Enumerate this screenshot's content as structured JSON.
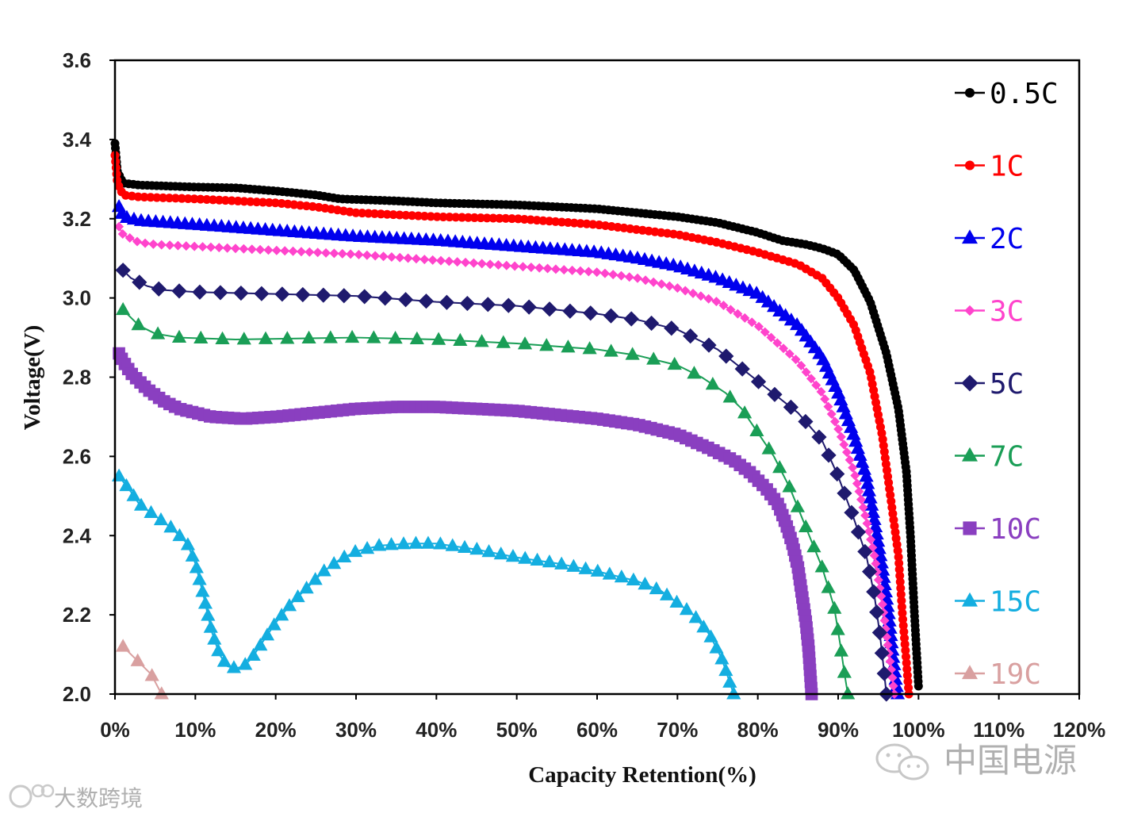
{
  "chart_data": {
    "type": "line",
    "title": "",
    "xlabel": "Capacity Retention(%)",
    "ylabel": "Voltage(V)",
    "xlim": [
      0,
      120
    ],
    "ylim": [
      2.0,
      3.6
    ],
    "x_ticks": [
      0,
      10,
      20,
      30,
      40,
      50,
      60,
      70,
      80,
      90,
      100,
      110,
      120
    ],
    "x_tick_labels": [
      "0%",
      "10%",
      "20%",
      "30%",
      "40%",
      "50%",
      "60%",
      "70%",
      "80%",
      "90%",
      "100%",
      "110%",
      "120%"
    ],
    "y_ticks": [
      2.0,
      2.2,
      2.4,
      2.6,
      2.8,
      3.0,
      3.2,
      3.4,
      3.6
    ],
    "y_tick_labels": [
      "2.0",
      "2.2",
      "2.4",
      "2.6",
      "2.8",
      "3.0",
      "3.2",
      "3.4",
      "3.6"
    ],
    "grid": false,
    "legend_position": "right",
    "series": [
      {
        "name": "0.5C",
        "color": "#000000",
        "marker": "circle",
        "n_markers": 260,
        "points": [
          [
            0,
            3.39
          ],
          [
            0.3,
            3.32
          ],
          [
            1,
            3.29
          ],
          [
            3,
            3.285
          ],
          [
            10,
            3.28
          ],
          [
            15,
            3.278
          ],
          [
            20,
            3.27
          ],
          [
            25,
            3.26
          ],
          [
            28,
            3.25
          ],
          [
            35,
            3.245
          ],
          [
            40,
            3.24
          ],
          [
            50,
            3.235
          ],
          [
            60,
            3.225
          ],
          [
            65,
            3.215
          ],
          [
            70,
            3.205
          ],
          [
            75,
            3.19
          ],
          [
            80,
            3.165
          ],
          [
            83,
            3.145
          ],
          [
            86,
            3.135
          ],
          [
            88,
            3.125
          ],
          [
            90,
            3.11
          ],
          [
            92,
            3.07
          ],
          [
            94,
            2.99
          ],
          [
            96,
            2.86
          ],
          [
            97.5,
            2.72
          ],
          [
            98.5,
            2.56
          ],
          [
            99,
            2.4
          ],
          [
            99.5,
            2.2
          ],
          [
            100,
            2.02
          ]
        ]
      },
      {
        "name": "1C",
        "color": "#ff0000",
        "marker": "circle",
        "n_markers": 190,
        "points": [
          [
            0,
            3.36
          ],
          [
            0.3,
            3.29
          ],
          [
            1,
            3.26
          ],
          [
            3,
            3.255
          ],
          [
            10,
            3.25
          ],
          [
            20,
            3.24
          ],
          [
            25,
            3.23
          ],
          [
            30,
            3.215
          ],
          [
            40,
            3.205
          ],
          [
            50,
            3.2
          ],
          [
            60,
            3.185
          ],
          [
            70,
            3.16
          ],
          [
            75,
            3.14
          ],
          [
            80,
            3.115
          ],
          [
            85,
            3.085
          ],
          [
            88,
            3.05
          ],
          [
            90,
            3.0
          ],
          [
            92,
            2.93
          ],
          [
            94,
            2.81
          ],
          [
            95.5,
            2.65
          ],
          [
            96.5,
            2.5
          ],
          [
            97.5,
            2.35
          ],
          [
            98,
            2.2
          ],
          [
            98.5,
            2.08
          ],
          [
            98.8,
            2.0
          ]
        ]
      },
      {
        "name": "2C",
        "color": "#0000ee",
        "marker": "triangle",
        "n_markers": 150,
        "points": [
          [
            0.5,
            3.23
          ],
          [
            1,
            3.205
          ],
          [
            3,
            3.195
          ],
          [
            10,
            3.185
          ],
          [
            20,
            3.17
          ],
          [
            30,
            3.155
          ],
          [
            40,
            3.145
          ],
          [
            50,
            3.13
          ],
          [
            60,
            3.115
          ],
          [
            65,
            3.1
          ],
          [
            70,
            3.08
          ],
          [
            75,
            3.05
          ],
          [
            80,
            3.01
          ],
          [
            85,
            2.93
          ],
          [
            88,
            2.85
          ],
          [
            90,
            2.76
          ],
          [
            92,
            2.65
          ],
          [
            93.5,
            2.55
          ],
          [
            94.5,
            2.44
          ],
          [
            95.5,
            2.32
          ],
          [
            96.3,
            2.2
          ],
          [
            96.8,
            2.1
          ],
          [
            97.2,
            2.03
          ],
          [
            97.4,
            2.0
          ]
        ]
      },
      {
        "name": "3C",
        "color": "#ff44cc",
        "marker": "diamond-small",
        "n_markers": 130,
        "points": [
          [
            0.5,
            3.18
          ],
          [
            1,
            3.16
          ],
          [
            3,
            3.14
          ],
          [
            5,
            3.135
          ],
          [
            10,
            3.13
          ],
          [
            20,
            3.12
          ],
          [
            30,
            3.11
          ],
          [
            40,
            3.095
          ],
          [
            50,
            3.08
          ],
          [
            60,
            3.065
          ],
          [
            65,
            3.05
          ],
          [
            70,
            3.025
          ],
          [
            75,
            2.99
          ],
          [
            80,
            2.93
          ],
          [
            85,
            2.84
          ],
          [
            88,
            2.76
          ],
          [
            90,
            2.67
          ],
          [
            92,
            2.56
          ],
          [
            93.5,
            2.44
          ],
          [
            94.5,
            2.35
          ],
          [
            95.5,
            2.23
          ],
          [
            96.2,
            2.12
          ],
          [
            96.7,
            2.05
          ],
          [
            97,
            2.0
          ]
        ]
      },
      {
        "name": "5C",
        "color": "#1f1a6e",
        "marker": "diamond",
        "n_markers": 50,
        "points": [
          [
            1,
            3.07
          ],
          [
            2,
            3.05
          ],
          [
            4,
            3.03
          ],
          [
            6,
            3.02
          ],
          [
            10,
            3.015
          ],
          [
            20,
            3.01
          ],
          [
            30,
            3.005
          ],
          [
            40,
            2.99
          ],
          [
            50,
            2.98
          ],
          [
            60,
            2.96
          ],
          [
            65,
            2.945
          ],
          [
            70,
            2.92
          ],
          [
            75,
            2.87
          ],
          [
            80,
            2.79
          ],
          [
            85,
            2.71
          ],
          [
            88,
            2.64
          ],
          [
            90,
            2.55
          ],
          [
            92,
            2.44
          ],
          [
            93.5,
            2.35
          ],
          [
            94.5,
            2.25
          ],
          [
            95.2,
            2.15
          ],
          [
            95.7,
            2.06
          ],
          [
            96,
            2.0
          ]
        ]
      },
      {
        "name": "7C",
        "color": "#1a9e56",
        "marker": "triangle",
        "n_markers": 45,
        "points": [
          [
            1,
            2.97
          ],
          [
            2,
            2.95
          ],
          [
            3,
            2.93
          ],
          [
            5,
            2.91
          ],
          [
            8,
            2.9
          ],
          [
            15,
            2.895
          ],
          [
            30,
            2.9
          ],
          [
            40,
            2.895
          ],
          [
            50,
            2.885
          ],
          [
            60,
            2.87
          ],
          [
            65,
            2.855
          ],
          [
            70,
            2.83
          ],
          [
            73,
            2.8
          ],
          [
            76,
            2.76
          ],
          [
            78,
            2.72
          ],
          [
            80,
            2.66
          ],
          [
            82,
            2.6
          ],
          [
            84,
            2.52
          ],
          [
            86,
            2.42
          ],
          [
            88,
            2.32
          ],
          [
            89.5,
            2.22
          ],
          [
            90.3,
            2.12
          ],
          [
            90.8,
            2.05
          ],
          [
            91.2,
            2.0
          ]
        ]
      },
      {
        "name": "10C",
        "color": "#8a3fc0",
        "marker": "square",
        "n_markers": 150,
        "points": [
          [
            0.5,
            2.86
          ],
          [
            1,
            2.84
          ],
          [
            2,
            2.81
          ],
          [
            4,
            2.77
          ],
          [
            6,
            2.74
          ],
          [
            8,
            2.72
          ],
          [
            12,
            2.7
          ],
          [
            16,
            2.695
          ],
          [
            20,
            2.7
          ],
          [
            25,
            2.71
          ],
          [
            30,
            2.72
          ],
          [
            35,
            2.725
          ],
          [
            40,
            2.725
          ],
          [
            50,
            2.715
          ],
          [
            55,
            2.705
          ],
          [
            60,
            2.695
          ],
          [
            65,
            2.68
          ],
          [
            70,
            2.655
          ],
          [
            74,
            2.62
          ],
          [
            77,
            2.59
          ],
          [
            79,
            2.56
          ],
          [
            81,
            2.52
          ],
          [
            82.5,
            2.48
          ],
          [
            83.5,
            2.43
          ],
          [
            84.3,
            2.38
          ],
          [
            85,
            2.32
          ],
          [
            85.5,
            2.25
          ],
          [
            86,
            2.18
          ],
          [
            86.3,
            2.12
          ],
          [
            86.7,
            2.0
          ]
        ]
      },
      {
        "name": "15C",
        "color": "#14aee0",
        "marker": "triangle",
        "n_markers": 70,
        "points": [
          [
            0.5,
            2.55
          ],
          [
            2,
            2.51
          ],
          [
            3,
            2.48
          ],
          [
            5,
            2.45
          ],
          [
            7,
            2.42
          ],
          [
            9,
            2.38
          ],
          [
            10,
            2.33
          ],
          [
            11,
            2.25
          ],
          [
            12,
            2.16
          ],
          [
            13,
            2.1
          ],
          [
            14,
            2.07
          ],
          [
            15,
            2.065
          ],
          [
            16,
            2.07
          ],
          [
            17,
            2.09
          ],
          [
            18,
            2.12
          ],
          [
            20,
            2.18
          ],
          [
            22,
            2.23
          ],
          [
            24,
            2.27
          ],
          [
            26,
            2.31
          ],
          [
            28,
            2.34
          ],
          [
            30,
            2.36
          ],
          [
            33,
            2.375
          ],
          [
            37,
            2.38
          ],
          [
            40,
            2.38
          ],
          [
            45,
            2.365
          ],
          [
            50,
            2.345
          ],
          [
            55,
            2.33
          ],
          [
            60,
            2.31
          ],
          [
            65,
            2.285
          ],
          [
            68,
            2.26
          ],
          [
            70,
            2.23
          ],
          [
            72,
            2.2
          ],
          [
            74,
            2.15
          ],
          [
            75.5,
            2.09
          ],
          [
            76.5,
            2.03
          ],
          [
            77,
            2.0
          ]
        ]
      },
      {
        "name": "19C",
        "color": "#d9a0a0",
        "marker": "triangle",
        "n_markers": 4,
        "points": [
          [
            1,
            2.12
          ],
          [
            3,
            2.08
          ],
          [
            4.5,
            2.05
          ],
          [
            5.8,
            2.0
          ]
        ]
      }
    ]
  },
  "watermark": {
    "brand_right": "中国电源",
    "brand_left": "大数跨境"
  }
}
